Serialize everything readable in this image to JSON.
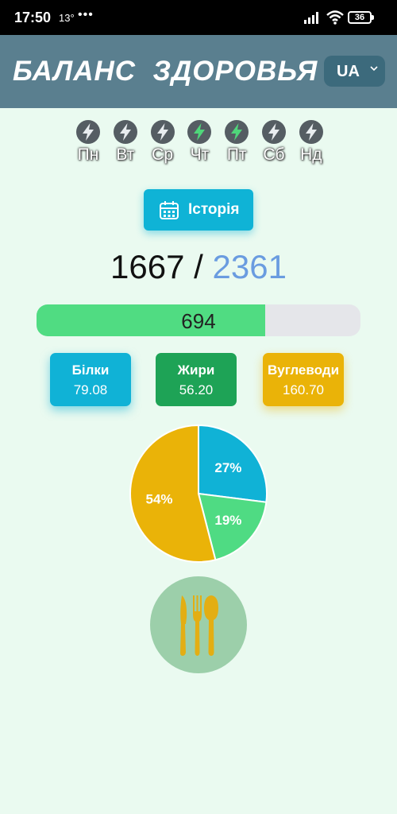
{
  "status": {
    "time": "17:50",
    "temperature": "13°",
    "dots": "•••",
    "battery": "36"
  },
  "header": {
    "title": "БАЛАНС  ЗДОРОВЬЯ",
    "language": "UA"
  },
  "days": [
    {
      "label": "Пн",
      "active": false
    },
    {
      "label": "Вт",
      "active": false
    },
    {
      "label": "Ср",
      "active": false
    },
    {
      "label": "Чт",
      "active": true
    },
    {
      "label": "Пт",
      "active": true
    },
    {
      "label": "Сб",
      "active": false
    },
    {
      "label": "Нд",
      "active": false
    }
  ],
  "history_button": {
    "label": "Історія"
  },
  "calories": {
    "consumed": "1667",
    "separator": "/",
    "goal": "2361",
    "remaining": "694",
    "progress_fraction": 0.706
  },
  "macros": {
    "protein": {
      "label": "Білки",
      "value": "79.08"
    },
    "fat": {
      "label": "Жири",
      "value": "56.20"
    },
    "carbs": {
      "label": "Вуглеводи",
      "value": "160.70"
    }
  },
  "chart_data": {
    "type": "pie",
    "slices": [
      {
        "label": "27%",
        "value": 27,
        "color": "#10b2d6"
      },
      {
        "label": "19%",
        "value": 19,
        "color": "#4fdb83"
      },
      {
        "label": "54%",
        "value": 54,
        "color": "#eab308"
      }
    ]
  },
  "colors": {
    "header": "#5a7f8f",
    "background": "#eafaf0",
    "bolt_active": "#4fd67a",
    "bolt_inactive": "#e8ecef",
    "bolt_circle": "#555d63"
  }
}
